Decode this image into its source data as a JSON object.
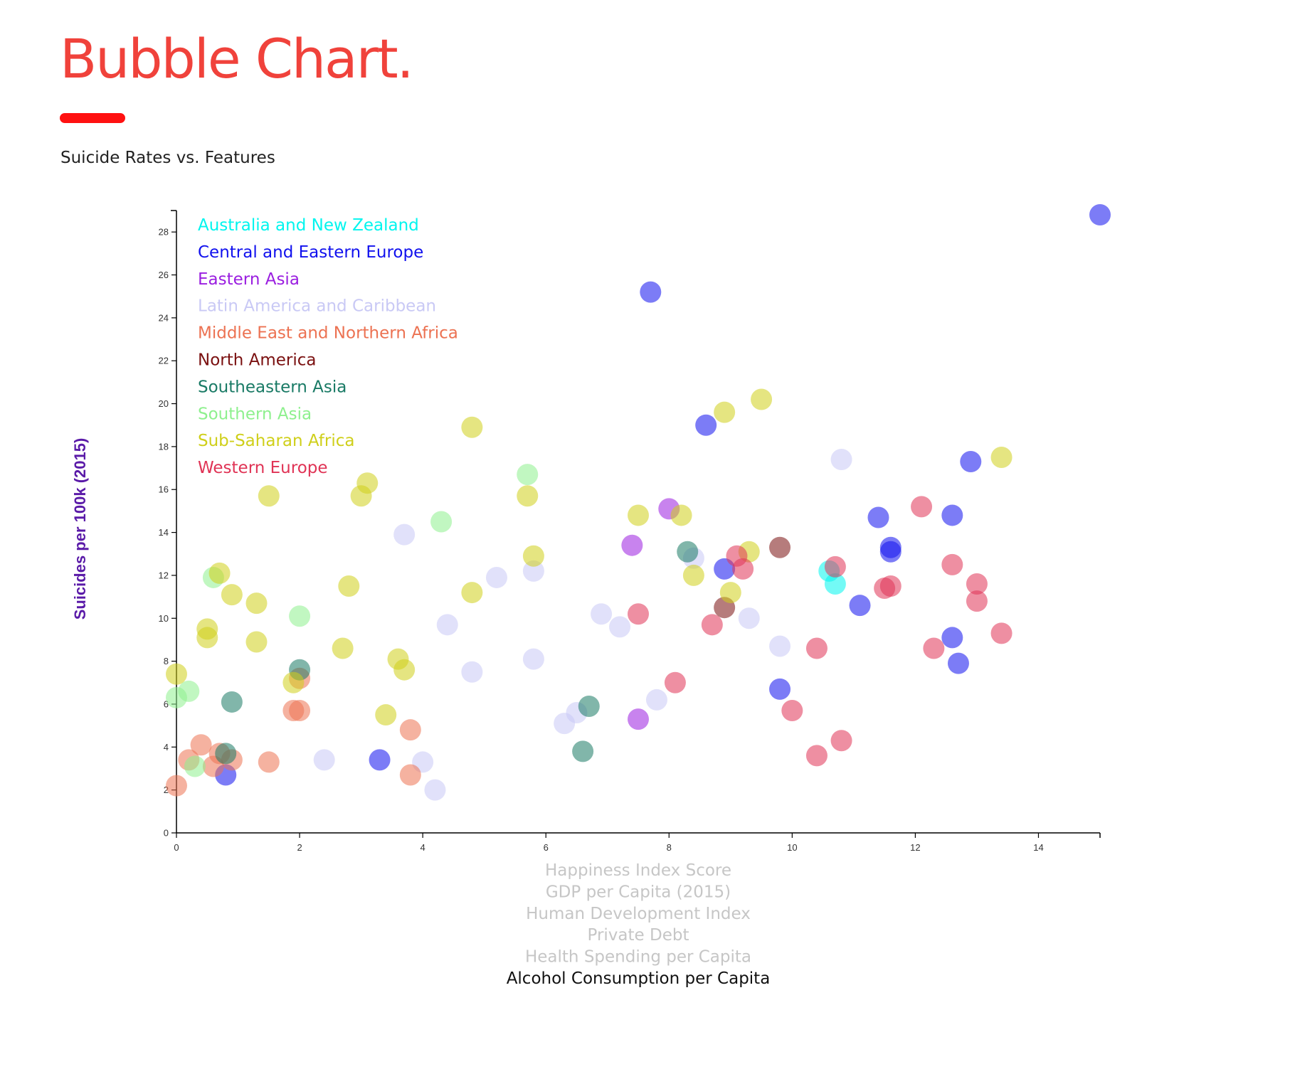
{
  "page": {
    "title": "Bubble Chart.",
    "subtitle": "Suicide Rates vs. Features"
  },
  "colors": {
    "title": "#f0423b",
    "underline": "#ff1111",
    "ylabel": "#5a1aa8",
    "x_option_inactive": "#c6c6c6",
    "x_option_active": "#111111"
  },
  "x_options": [
    {
      "label": "Happiness Index Score",
      "active": false
    },
    {
      "label": "GDP per Capita (2015)",
      "active": false
    },
    {
      "label": "Human Development Index",
      "active": false
    },
    {
      "label": "Private Debt",
      "active": false
    },
    {
      "label": "Health Spending per Capita",
      "active": false
    },
    {
      "label": "Alcohol Consumption per Capita",
      "active": true
    }
  ],
  "chart_data": {
    "type": "scatter",
    "title": "",
    "xlabel": "Alcohol Consumption per Capita",
    "ylabel": "Suicides per 100k (2015)",
    "xlim": [
      0,
      15
    ],
    "ylim": [
      0,
      29
    ],
    "x_ticks": [
      0,
      2,
      4,
      6,
      8,
      10,
      12,
      14
    ],
    "y_ticks": [
      0,
      2,
      4,
      6,
      8,
      10,
      12,
      14,
      16,
      18,
      20,
      22,
      24,
      26,
      28
    ],
    "grid": false,
    "legend": "top-left",
    "series": [
      {
        "name": "Australia and New Zealand",
        "color": "#00f5ee",
        "points": [
          [
            10.6,
            12.2
          ],
          [
            10.7,
            11.6
          ]
        ]
      },
      {
        "name": "Central and Eastern Europe",
        "color": "#1010ee",
        "points": [
          [
            15.0,
            28.8
          ],
          [
            7.7,
            25.2
          ],
          [
            8.6,
            19.0
          ],
          [
            12.9,
            17.3
          ],
          [
            11.4,
            14.7
          ],
          [
            12.6,
            14.8
          ],
          [
            11.6,
            13.3
          ],
          [
            11.6,
            13.1
          ],
          [
            8.9,
            12.3
          ],
          [
            11.1,
            10.6
          ],
          [
            12.6,
            9.1
          ],
          [
            12.7,
            7.9
          ],
          [
            9.8,
            6.7
          ],
          [
            3.3,
            3.4
          ],
          [
            0.8,
            2.7
          ]
        ]
      },
      {
        "name": "Eastern Asia",
        "color": "#9a1ee0",
        "points": [
          [
            8.0,
            15.1
          ],
          [
            7.4,
            13.4
          ],
          [
            7.5,
            5.3
          ]
        ]
      },
      {
        "name": "Latin America and Caribbean",
        "color": "#c9c9f5",
        "points": [
          [
            10.8,
            17.4
          ],
          [
            3.7,
            13.9
          ],
          [
            8.4,
            12.8
          ],
          [
            5.8,
            12.2
          ],
          [
            5.2,
            11.9
          ],
          [
            6.9,
            10.2
          ],
          [
            9.3,
            10.0
          ],
          [
            4.4,
            9.7
          ],
          [
            7.2,
            9.6
          ],
          [
            9.8,
            8.7
          ],
          [
            5.8,
            8.1
          ],
          [
            4.8,
            7.5
          ],
          [
            7.8,
            6.2
          ],
          [
            6.5,
            5.6
          ],
          [
            6.3,
            5.1
          ],
          [
            2.4,
            3.4
          ],
          [
            4.0,
            3.3
          ],
          [
            4.2,
            2.0
          ]
        ]
      },
      {
        "name": "Middle East and Northern Africa",
        "color": "#ec7252",
        "points": [
          [
            2.0,
            7.2
          ],
          [
            1.9,
            5.7
          ],
          [
            2.0,
            5.7
          ],
          [
            3.8,
            4.8
          ],
          [
            0.4,
            4.1
          ],
          [
            0.7,
            3.7
          ],
          [
            0.2,
            3.4
          ],
          [
            0.9,
            3.4
          ],
          [
            1.5,
            3.3
          ],
          [
            0.6,
            3.1
          ],
          [
            3.8,
            2.7
          ],
          [
            0.0,
            2.2
          ]
        ]
      },
      {
        "name": "North America",
        "color": "#7a1010",
        "points": [
          [
            9.8,
            13.3
          ],
          [
            8.9,
            10.5
          ]
        ]
      },
      {
        "name": "Southeastern Asia",
        "color": "#197a65",
        "points": [
          [
            8.3,
            13.1
          ],
          [
            2.0,
            7.6
          ],
          [
            0.9,
            6.1
          ],
          [
            6.7,
            5.9
          ],
          [
            6.6,
            3.8
          ],
          [
            0.8,
            3.7
          ]
        ]
      },
      {
        "name": "Southern Asia",
        "color": "#8ef08e",
        "points": [
          [
            5.7,
            16.7
          ],
          [
            4.3,
            14.5
          ],
          [
            0.6,
            11.9
          ],
          [
            2.0,
            10.1
          ],
          [
            0.2,
            6.6
          ],
          [
            0.0,
            6.3
          ],
          [
            0.3,
            3.1
          ]
        ]
      },
      {
        "name": "Sub-Saharan Africa",
        "color": "#cfcf1a",
        "points": [
          [
            9.5,
            20.2
          ],
          [
            8.9,
            19.6
          ],
          [
            4.8,
            18.9
          ],
          [
            13.4,
            17.5
          ],
          [
            3.1,
            16.3
          ],
          [
            1.5,
            15.7
          ],
          [
            3.0,
            15.7
          ],
          [
            5.7,
            15.7
          ],
          [
            7.5,
            14.8
          ],
          [
            8.2,
            14.8
          ],
          [
            9.3,
            13.1
          ],
          [
            5.8,
            12.9
          ],
          [
            0.7,
            12.1
          ],
          [
            8.4,
            12.0
          ],
          [
            2.8,
            11.5
          ],
          [
            4.8,
            11.2
          ],
          [
            9.0,
            11.2
          ],
          [
            0.9,
            11.1
          ],
          [
            1.3,
            10.7
          ],
          [
            0.5,
            9.5
          ],
          [
            0.5,
            9.1
          ],
          [
            1.3,
            8.9
          ],
          [
            2.7,
            8.6
          ],
          [
            3.6,
            8.1
          ],
          [
            3.7,
            7.6
          ],
          [
            0.0,
            7.4
          ],
          [
            1.9,
            7.0
          ],
          [
            3.4,
            5.5
          ]
        ]
      },
      {
        "name": "Western Europe",
        "color": "#e03355",
        "points": [
          [
            12.1,
            15.2
          ],
          [
            9.1,
            12.9
          ],
          [
            10.7,
            12.4
          ],
          [
            9.2,
            12.3
          ],
          [
            12.6,
            12.5
          ],
          [
            13.0,
            11.6
          ],
          [
            11.5,
            11.4
          ],
          [
            11.6,
            11.5
          ],
          [
            13.0,
            10.8
          ],
          [
            7.5,
            10.2
          ],
          [
            8.7,
            9.7
          ],
          [
            13.4,
            9.3
          ],
          [
            10.4,
            8.6
          ],
          [
            12.3,
            8.6
          ],
          [
            8.1,
            7.0
          ],
          [
            10.0,
            5.7
          ],
          [
            10.8,
            4.3
          ],
          [
            10.4,
            3.6
          ]
        ]
      }
    ]
  }
}
